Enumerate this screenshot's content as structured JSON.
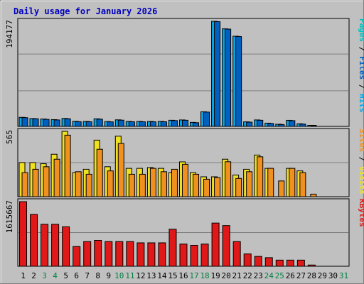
{
  "title": "Daily usage for January 2026",
  "colors": {
    "background": "#c0c0c0",
    "panel": "#c0c0c0",
    "title": "#0000c0",
    "hits": "#00a8e8",
    "files": "#0060c0",
    "pages": "#00c0c0",
    "visits": "#f0e020",
    "sites": "#f09020",
    "kbytes": "#e01818",
    "weekday_label": "#000000",
    "weekend_label": "#008040"
  },
  "chart_data": [
    {
      "type": "bar",
      "title": "",
      "ylabel_max": "194177",
      "right_label": [
        {
          "text": "Pages",
          "color": "#00c0c0"
        },
        {
          "text": " / ",
          "color": "#000000"
        },
        {
          "text": "Files",
          "color": "#0060c0"
        },
        {
          "text": " / ",
          "color": "#000000"
        },
        {
          "text": "Hits",
          "color": "#00a8e8"
        }
      ],
      "ylim": [
        0,
        194177
      ],
      "series": [
        {
          "name": "Hits",
          "values": [
            16700,
            14500,
            13600,
            12500,
            14700,
            9300,
            9100,
            14000,
            8900,
            12100,
            9100,
            9100,
            9100,
            9100,
            11300,
            11900,
            7400,
            27000,
            194177,
            180300,
            166600,
            8400,
            11900,
            6000,
            4000,
            11200,
            4800,
            800,
            0,
            0,
            0
          ]
        },
        {
          "name": "Files",
          "values": [
            16100,
            14100,
            13000,
            11900,
            14100,
            8700,
            8500,
            13400,
            8300,
            11500,
            8500,
            8500,
            8500,
            8500,
            10700,
            11300,
            6800,
            26400,
            193500,
            179700,
            166000,
            7800,
            11300,
            5400,
            3400,
            10600,
            4200,
            700,
            0,
            0,
            0
          ]
        }
      ]
    },
    {
      "type": "bar",
      "title": "",
      "ylabel_max": "565",
      "right_label": [
        {
          "text": "Sites",
          "color": "#f09020"
        },
        {
          "text": " / ",
          "color": "#000000"
        },
        {
          "text": "Visits",
          "color": "#f0e020"
        }
      ],
      "ylim": [
        0,
        565
      ],
      "series": [
        {
          "name": "Visits",
          "values": [
            295,
            295,
            285,
            367,
            565,
            208,
            237,
            489,
            259,
            523,
            245,
            245,
            252,
            245,
            208,
            301,
            208,
            172,
            172,
            324,
            187,
            237,
            360,
            245,
            0,
            245,
            223,
            0,
            0,
            0,
            0
          ]
        },
        {
          "name": "Sites",
          "values": [
            208,
            237,
            259,
            324,
            532,
            216,
            194,
            410,
            223,
            460,
            194,
            194,
            245,
            216,
            237,
            280,
            194,
            151,
            165,
            302,
            158,
            216,
            345,
            245,
            136,
            245,
            208,
            22,
            0,
            0,
            0
          ]
        }
      ]
    },
    {
      "type": "bar",
      "title": "",
      "ylabel_max": "1615667",
      "right_label": [
        {
          "text": "KBytes",
          "color": "#e01818"
        }
      ],
      "ylim": [
        0,
        1615667
      ],
      "series": [
        {
          "name": "KBytes",
          "values": [
            1615667,
            1296000,
            1049000,
            1049000,
            987000,
            493000,
            617000,
            648000,
            617000,
            617000,
            617000,
            586000,
            586000,
            586000,
            925000,
            555000,
            524000,
            555000,
            1080000,
            1018000,
            617000,
            308000,
            246000,
            215000,
            154000,
            154000,
            154000,
            31000,
            0,
            0,
            0
          ]
        }
      ]
    }
  ],
  "days": [
    "1",
    "2",
    "3",
    "4",
    "5",
    "6",
    "7",
    "8",
    "9",
    "10",
    "11",
    "12",
    "13",
    "14",
    "15",
    "16",
    "17",
    "18",
    "19",
    "20",
    "21",
    "22",
    "23",
    "24",
    "25",
    "26",
    "27",
    "28",
    "29",
    "30",
    "31"
  ],
  "weekend_days": [
    "3",
    "4",
    "10",
    "11",
    "17",
    "18",
    "24",
    "25",
    "31"
  ]
}
